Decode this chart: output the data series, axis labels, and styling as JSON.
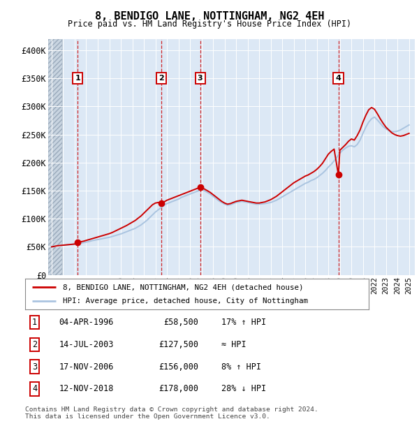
{
  "title": "8, BENDIGO LANE, NOTTINGHAM, NG2 4EH",
  "subtitle": "Price paid vs. HM Land Registry's House Price Index (HPI)",
  "ylabel_ticks": [
    "£0",
    "£50K",
    "£100K",
    "£150K",
    "£200K",
    "£250K",
    "£300K",
    "£350K",
    "£400K"
  ],
  "ytick_values": [
    0,
    50000,
    100000,
    150000,
    200000,
    250000,
    300000,
    350000,
    400000
  ],
  "ylim": [
    0,
    420000
  ],
  "xlim_start": 1993.7,
  "xlim_end": 2025.5,
  "hpi_color": "#aac4e0",
  "price_color": "#cc0000",
  "sale_marker_color": "#cc0000",
  "dashed_line_color": "#cc0000",
  "background_plot": "#dce8f5",
  "background_hatch_color": "#c8d4e0",
  "legend_label_price": "8, BENDIGO LANE, NOTTINGHAM, NG2 4EH (detached house)",
  "legend_label_hpi": "HPI: Average price, detached house, City of Nottingham",
  "transactions": [
    {
      "num": 1,
      "date": "04-APR-1996",
      "price": 58500,
      "year": 1996.27,
      "hpi_note": "17% ↑ HPI"
    },
    {
      "num": 2,
      "date": "14-JUL-2003",
      "price": 127500,
      "year": 2003.54,
      "hpi_note": "≈ HPI"
    },
    {
      "num": 3,
      "date": "17-NOV-2006",
      "price": 156000,
      "year": 2006.88,
      "hpi_note": "8% ↑ HPI"
    },
    {
      "num": 4,
      "date": "12-NOV-2018",
      "price": 178000,
      "year": 2018.87,
      "hpi_note": "28% ↓ HPI"
    }
  ],
  "footer": "Contains HM Land Registry data © Crown copyright and database right 2024.\nThis data is licensed under the Open Government Licence v3.0.",
  "hpi_years": [
    1994.0,
    1994.25,
    1994.5,
    1994.75,
    1995.0,
    1995.25,
    1995.5,
    1995.75,
    1996.0,
    1996.25,
    1996.5,
    1996.75,
    1997.0,
    1997.25,
    1997.5,
    1997.75,
    1998.0,
    1998.25,
    1998.5,
    1998.75,
    1999.0,
    1999.25,
    1999.5,
    1999.75,
    2000.0,
    2000.25,
    2000.5,
    2000.75,
    2001.0,
    2001.25,
    2001.5,
    2001.75,
    2002.0,
    2002.25,
    2002.5,
    2002.75,
    2003.0,
    2003.25,
    2003.5,
    2003.75,
    2004.0,
    2004.25,
    2004.5,
    2004.75,
    2005.0,
    2005.25,
    2005.5,
    2005.75,
    2006.0,
    2006.25,
    2006.5,
    2006.75,
    2007.0,
    2007.25,
    2007.5,
    2007.75,
    2008.0,
    2008.25,
    2008.5,
    2008.75,
    2009.0,
    2009.25,
    2009.5,
    2009.75,
    2010.0,
    2010.25,
    2010.5,
    2010.75,
    2011.0,
    2011.25,
    2011.5,
    2011.75,
    2012.0,
    2012.25,
    2012.5,
    2012.75,
    2013.0,
    2013.25,
    2013.5,
    2013.75,
    2014.0,
    2014.25,
    2014.5,
    2014.75,
    2015.0,
    2015.25,
    2015.5,
    2015.75,
    2016.0,
    2016.25,
    2016.5,
    2016.75,
    2017.0,
    2017.25,
    2017.5,
    2017.75,
    2018.0,
    2018.25,
    2018.5,
    2018.75,
    2019.0,
    2019.25,
    2019.5,
    2019.75,
    2020.0,
    2020.25,
    2020.5,
    2020.75,
    2021.0,
    2021.25,
    2021.5,
    2021.75,
    2022.0,
    2022.25,
    2022.5,
    2022.75,
    2023.0,
    2023.25,
    2023.5,
    2023.75,
    2024.0,
    2024.25,
    2024.5,
    2024.75,
    2025.0
  ],
  "hpi_values": [
    50000,
    51000,
    52000,
    52500,
    53000,
    53500,
    54000,
    54500,
    55000,
    55500,
    56500,
    57500,
    58500,
    59500,
    61000,
    62000,
    63000,
    64000,
    65000,
    66000,
    67000,
    68500,
    70000,
    71500,
    73000,
    75000,
    77000,
    79000,
    81000,
    83000,
    86000,
    89000,
    93000,
    97000,
    102000,
    107000,
    112000,
    116000,
    120000,
    124000,
    127000,
    129000,
    131000,
    133000,
    135000,
    138000,
    140000,
    142000,
    144000,
    146000,
    148000,
    150000,
    152000,
    150000,
    147000,
    144000,
    140000,
    136000,
    132000,
    129000,
    126000,
    124000,
    125000,
    127000,
    129000,
    130000,
    131000,
    130000,
    129000,
    128000,
    127000,
    126000,
    126000,
    126500,
    127000,
    128000,
    129000,
    131000,
    133000,
    136000,
    139000,
    142000,
    145000,
    148000,
    151000,
    154000,
    157000,
    160000,
    163000,
    165000,
    168000,
    170000,
    173000,
    177000,
    181000,
    186000,
    192000,
    197000,
    203000,
    210000,
    217000,
    222000,
    226000,
    229000,
    230000,
    228000,
    232000,
    240000,
    252000,
    263000,
    272000,
    278000,
    281000,
    276000,
    270000,
    264000,
    260000,
    257000,
    255000,
    255000,
    256000,
    258000,
    261000,
    264000,
    267000
  ],
  "price_years": [
    1994.0,
    1994.25,
    1994.5,
    1994.75,
    1995.0,
    1995.25,
    1995.5,
    1995.75,
    1996.0,
    1996.27,
    1996.5,
    1996.75,
    1997.0,
    1997.25,
    1997.5,
    1997.75,
    1998.0,
    1998.25,
    1998.5,
    1998.75,
    1999.0,
    1999.25,
    1999.5,
    1999.75,
    2000.0,
    2000.25,
    2000.5,
    2000.75,
    2001.0,
    2001.25,
    2001.5,
    2001.75,
    2002.0,
    2002.25,
    2002.5,
    2002.75,
    2003.0,
    2003.25,
    2003.54,
    2003.75,
    2004.0,
    2004.25,
    2004.5,
    2004.75,
    2005.0,
    2005.25,
    2005.5,
    2005.75,
    2006.0,
    2006.25,
    2006.5,
    2006.75,
    2006.88,
    2007.0,
    2007.25,
    2007.5,
    2007.75,
    2008.0,
    2008.25,
    2008.5,
    2008.75,
    2009.0,
    2009.25,
    2009.5,
    2009.75,
    2010.0,
    2010.25,
    2010.5,
    2010.75,
    2011.0,
    2011.25,
    2011.5,
    2011.75,
    2012.0,
    2012.25,
    2012.5,
    2012.75,
    2013.0,
    2013.25,
    2013.5,
    2013.75,
    2014.0,
    2014.25,
    2014.5,
    2014.75,
    2015.0,
    2015.25,
    2015.5,
    2015.75,
    2016.0,
    2016.25,
    2016.5,
    2016.75,
    2017.0,
    2017.25,
    2017.5,
    2017.75,
    2018.0,
    2018.25,
    2018.5,
    2018.87,
    2019.0,
    2019.25,
    2019.5,
    2019.75,
    2020.0,
    2020.25,
    2020.5,
    2020.75,
    2021.0,
    2021.25,
    2021.5,
    2021.75,
    2022.0,
    2022.25,
    2022.5,
    2022.75,
    2023.0,
    2023.25,
    2023.5,
    2023.75,
    2024.0,
    2024.25,
    2024.5,
    2024.75,
    2025.0
  ],
  "price_values": [
    50000,
    51000,
    52000,
    52500,
    53000,
    53500,
    54000,
    54500,
    55000,
    58500,
    59000,
    60000,
    61500,
    63000,
    64500,
    66000,
    67500,
    69000,
    70500,
    72000,
    73500,
    75500,
    78000,
    80500,
    83000,
    85500,
    88000,
    91000,
    94000,
    97000,
    101000,
    105000,
    110000,
    115000,
    120000,
    125000,
    128000,
    129000,
    127500,
    130000,
    133000,
    135000,
    137000,
    139000,
    141000,
    143000,
    145000,
    147000,
    149000,
    151000,
    153000,
    155000,
    156000,
    155000,
    153000,
    150000,
    147000,
    143000,
    139000,
    135000,
    131000,
    128000,
    126000,
    127000,
    129000,
    131000,
    132000,
    133000,
    132000,
    131000,
    130000,
    129000,
    128000,
    128000,
    129000,
    130000,
    132000,
    134000,
    137000,
    140000,
    144000,
    148000,
    152000,
    156000,
    160000,
    164000,
    167000,
    170000,
    173000,
    176000,
    178000,
    181000,
    184000,
    188000,
    193000,
    199000,
    207000,
    215000,
    220000,
    224000,
    178000,
    222000,
    227000,
    232000,
    238000,
    242000,
    240000,
    248000,
    258000,
    272000,
    284000,
    294000,
    298000,
    295000,
    287000,
    278000,
    270000,
    263000,
    258000,
    253000,
    250000,
    248000,
    247000,
    248000,
    250000,
    252000
  ]
}
